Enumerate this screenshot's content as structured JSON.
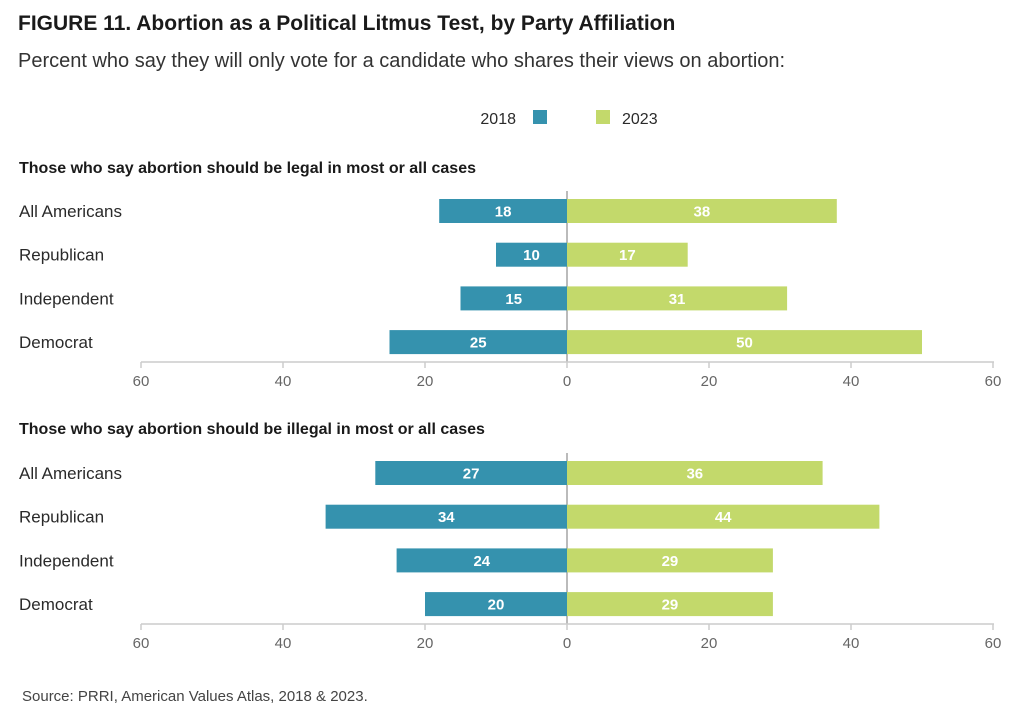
{
  "title": "FIGURE 11. Abortion as a Political Litmus Test, by Party Affiliation",
  "subtitle": "Percent who say they will only vote for a candidate who shares their views on abortion:",
  "source": "Source: PRRI, American Values Atlas, 2018 & 2023.",
  "colors": {
    "series_2018": "#3592ae",
    "series_2023": "#c3d96b",
    "axis": "#cccccc",
    "zero_line": "#bbbbbb"
  },
  "chart_data": [
    {
      "type": "bar",
      "orientation": "horizontal-diverging",
      "title": "Those who say abortion should be legal in most or all cases",
      "categories": [
        "All Americans",
        "Republican",
        "Independent",
        "Democrat"
      ],
      "series": [
        {
          "name": "2018",
          "values": [
            18,
            10,
            15,
            25
          ],
          "direction": "left"
        },
        {
          "name": "2023",
          "values": [
            38,
            17,
            31,
            50
          ],
          "direction": "right"
        }
      ],
      "xlim": [
        -60,
        60
      ],
      "tick_labels": [
        "60",
        "40",
        "20",
        "0",
        "20",
        "40",
        "60"
      ],
      "legend_position": "top-center",
      "grid": false
    },
    {
      "type": "bar",
      "orientation": "horizontal-diverging",
      "title": "Those who say abortion should be illegal in most or all cases",
      "categories": [
        "All Americans",
        "Republican",
        "Independent",
        "Democrat"
      ],
      "series": [
        {
          "name": "2018",
          "values": [
            27,
            34,
            24,
            20
          ],
          "direction": "left"
        },
        {
          "name": "2023",
          "values": [
            36,
            44,
            29,
            29
          ],
          "direction": "right"
        }
      ],
      "xlim": [
        -60,
        60
      ],
      "tick_labels": [
        "60",
        "40",
        "20",
        "0",
        "20",
        "40",
        "60"
      ],
      "legend_position": "top-center",
      "grid": false
    }
  ]
}
